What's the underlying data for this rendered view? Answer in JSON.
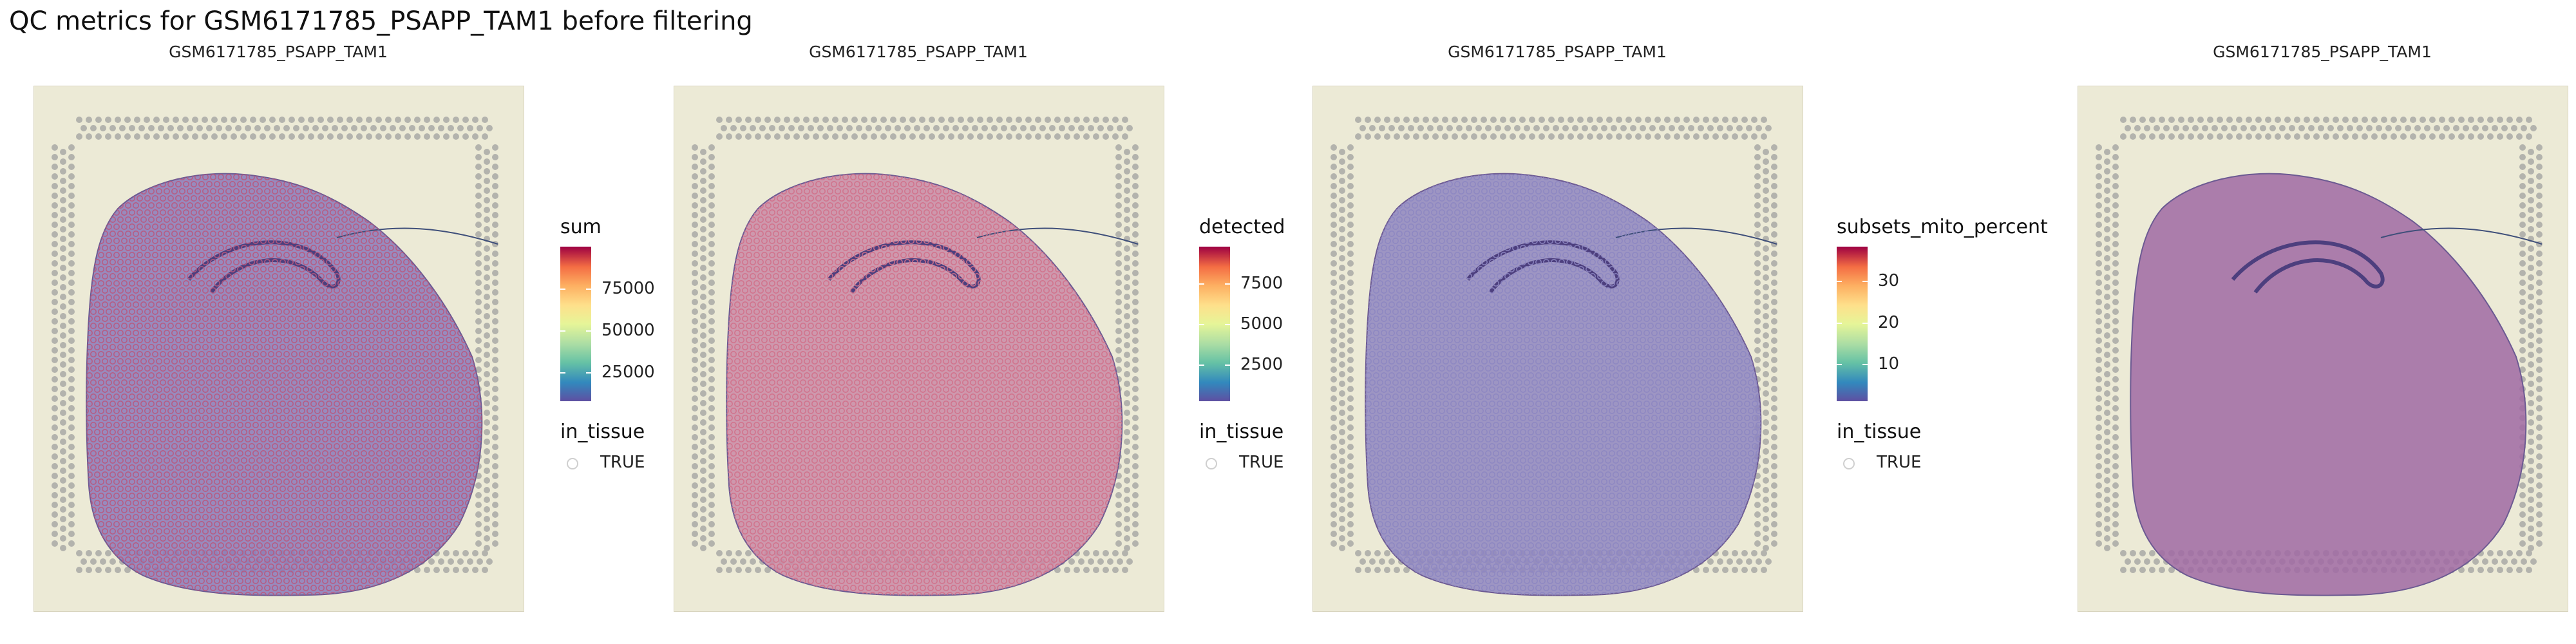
{
  "title": "QC metrics for GSM6171785_PSAPP_TAM1 before filtering",
  "panels": [
    {
      "subtitle": "GSM6171785_PSAPP_TAM1",
      "metric": "sum",
      "ticks": [
        "75000",
        "50000",
        "25000"
      ],
      "tick_values": [
        75000,
        50000,
        25000
      ],
      "range": [
        0,
        100000
      ],
      "spot_color": "#b9587d",
      "tissue_color": "#8a79b8"
    },
    {
      "subtitle": "GSM6171785_PSAPP_TAM1",
      "metric": "detected",
      "ticks": [
        "7500",
        "5000",
        "2500"
      ],
      "tick_values": [
        7500,
        5000,
        2500
      ],
      "range": [
        0,
        10000
      ],
      "spot_color": "#d2708a",
      "tissue_color": "#c98aa6"
    },
    {
      "subtitle": "GSM6171785_PSAPP_TAM1",
      "metric": "subsets_mito_percent",
      "ticks": [
        "30",
        "20",
        "10"
      ],
      "tick_values": [
        30,
        20,
        10
      ],
      "range": [
        0,
        40
      ],
      "spot_color": "#8d86c2",
      "tissue_color": "#8f86bf"
    },
    {
      "subtitle": "GSM6171785_PSAPP_TAM1",
      "tissue_color": "#a06aa3"
    }
  ],
  "legend": {
    "shape_title": "in_tissue",
    "shape_value": "TRUE"
  },
  "colors": {
    "slide_background": "#ecead6",
    "fiducial": "#b3b3ad",
    "scale": [
      "#5e4fa2",
      "#3288bd",
      "#66c2a5",
      "#abdda4",
      "#e6f598",
      "#fee08b",
      "#fdae61",
      "#f46d43",
      "#9e0142"
    ]
  }
}
